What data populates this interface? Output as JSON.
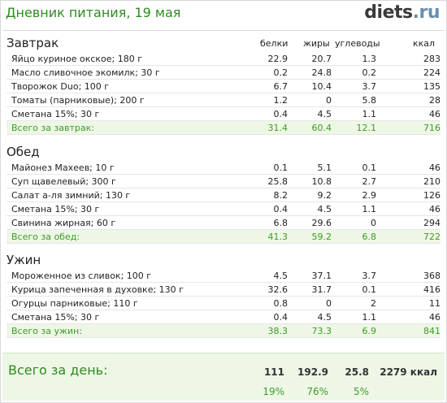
{
  "header": {
    "title": "Дневник питания, 19 мая",
    "logo_main": "diets",
    "logo_tld": ".ru"
  },
  "columns": {
    "protein": "белки",
    "fat": "жиры",
    "carbs": "углеводы",
    "kcal": "ккал"
  },
  "meals": [
    {
      "title": "Завтрак",
      "items": [
        {
          "name": "Яйцо куриное окское; 180 г",
          "protein": "22.9",
          "fat": "20.7",
          "carbs": "1.3",
          "kcal": "283"
        },
        {
          "name": "Масло сливочное экомилк; 30 г",
          "protein": "0.2",
          "fat": "24.8",
          "carbs": "0.2",
          "kcal": "224"
        },
        {
          "name": "Творожок Duo; 100 г",
          "protein": "6.7",
          "fat": "10.4",
          "carbs": "3.7",
          "kcal": "135"
        },
        {
          "name": "Томаты (парниковые); 200 г",
          "protein": "1.2",
          "fat": "0",
          "carbs": "5.8",
          "kcal": "28"
        },
        {
          "name": "Сметана 15%; 30 г",
          "protein": "0.4",
          "fat": "4.5",
          "carbs": "1.1",
          "kcal": "46"
        }
      ],
      "total": {
        "label": "Всего за завтрак:",
        "protein": "31.4",
        "fat": "60.4",
        "carbs": "12.1",
        "kcal": "716"
      }
    },
    {
      "title": "Обед",
      "items": [
        {
          "name": "Майонез Махеев; 10 г",
          "protein": "0.1",
          "fat": "5.1",
          "carbs": "0.1",
          "kcal": "46"
        },
        {
          "name": "Суп щавелевый; 300 г",
          "protein": "25.8",
          "fat": "10.8",
          "carbs": "2.7",
          "kcal": "210"
        },
        {
          "name": "Салат а-ля зимний; 130 г",
          "protein": "8.2",
          "fat": "9.2",
          "carbs": "2.9",
          "kcal": "126"
        },
        {
          "name": "Сметана 15%; 30 г",
          "protein": "0.4",
          "fat": "4.5",
          "carbs": "1.1",
          "kcal": "46"
        },
        {
          "name": "Свинина жирная; 60 г",
          "protein": "6.8",
          "fat": "29.6",
          "carbs": "0",
          "kcal": "294"
        }
      ],
      "total": {
        "label": "Всего за обед:",
        "protein": "41.3",
        "fat": "59.2",
        "carbs": "6.8",
        "kcal": "722"
      }
    },
    {
      "title": "Ужин",
      "items": [
        {
          "name": "Мороженное из сливок; 100 г",
          "protein": "4.5",
          "fat": "37.1",
          "carbs": "3.7",
          "kcal": "368"
        },
        {
          "name": "Курица запеченная в духовке; 130 г",
          "protein": "32.6",
          "fat": "31.7",
          "carbs": "0.1",
          "kcal": "416"
        },
        {
          "name": "Огурцы парниковые; 110 г",
          "protein": "0.8",
          "fat": "0",
          "carbs": "2",
          "kcal": "11"
        },
        {
          "name": "Сметана 15%; 30 г",
          "protein": "0.4",
          "fat": "4.5",
          "carbs": "1.1",
          "kcal": "46"
        }
      ],
      "total": {
        "label": "Всего за ужин:",
        "protein": "38.3",
        "fat": "73.3",
        "carbs": "6.9",
        "kcal": "841"
      }
    }
  ],
  "day": {
    "label": "Всего за день:",
    "protein": "111",
    "fat": "192.9",
    "carbs": "25.8",
    "kcal": "2279 ккал",
    "protein_pct": "19%",
    "fat_pct": "76%",
    "carbs_pct": "5%"
  }
}
